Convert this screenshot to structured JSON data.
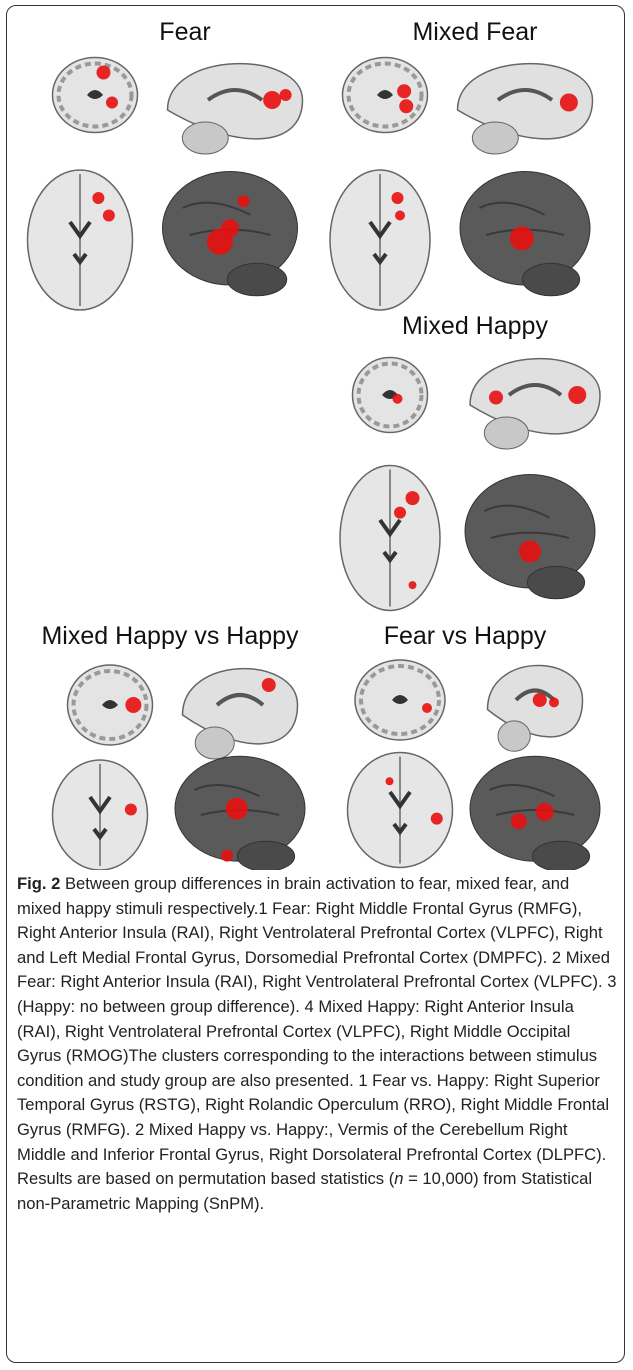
{
  "panels": [
    {
      "title": "Fear"
    },
    {
      "title": "Mixed Fear"
    },
    {
      "title": "Mixed Happy"
    },
    {
      "title": "Mixed Happy vs Happy"
    },
    {
      "title": "Fear vs Happy"
    }
  ],
  "caption": {
    "label": "Fig. 2",
    "text_before": " Between group differences in brain activation to fear, mixed fear, and mixed happy stimuli respectively.1 Fear: Right Middle Frontal Gyrus (RMFG), Right Anterior Insula (RAI), Right Ventrolateral Prefrontal Cortex (VLPFC), Right and Left Medial Frontal Gyrus, Dorsomedial Prefrontal Cortex (DMPFC). 2 Mixed Fear: Right Anterior Insula (RAI), Right Ventrolateral Prefrontal Cortex (VLPFC). 3 (Happy: no between group difference). 4 Mixed Happy: Right Anterior Insula (RAI), Right Ventrolateral Prefrontal Cortex (VLPFC), Right Middle Occipital Gyrus (RMOG)The clusters corresponding to the interactions between stimulus condition and study group are also presented. 1 Fear vs. Happy: Right Superior Temporal Gyrus (RSTG), Right Rolandic Operculum (RRO), Right Middle Frontal Gyrus (RMFG). 2 Mixed Happy vs. Happy:, Vermis of the Cerebellum Right Middle and Inferior Frontal Gyrus, Right Dorsolateral Prefrontal Cortex (DLPFC). Results are based on permutation based statistics (",
    "italic": "n",
    "text_after": " = 10,000) from Statistical non-Parametric Mapping (SnPM)."
  }
}
